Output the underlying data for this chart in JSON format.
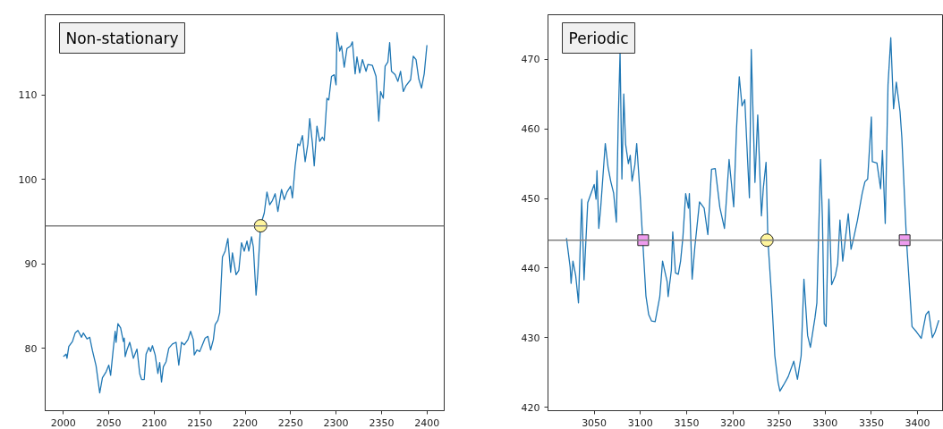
{
  "chart_data": [
    {
      "type": "line",
      "title": "Non-stationary",
      "xlim": [
        1980,
        2419
      ],
      "ylim": [
        72.6,
        119.5
      ],
      "xticks": [
        2000,
        2050,
        2100,
        2150,
        2200,
        2250,
        2300,
        2350,
        2400
      ],
      "yticks": [
        80,
        90,
        100,
        110
      ],
      "ref_lines": [
        {
          "axis": "y",
          "value": 94.5,
          "color": "#808080"
        }
      ],
      "series": [
        {
          "color": "#1f77b4",
          "x": [
            2000,
            2003,
            2004,
            2006,
            2010,
            2013,
            2016,
            2020,
            2022,
            2026,
            2029,
            2032,
            2036,
            2038,
            2040,
            2043,
            2047,
            2050,
            2052,
            2055,
            2057,
            2058,
            2060,
            2063,
            2066,
            2067,
            2068,
            2070,
            2073,
            2075,
            2077,
            2081,
            2084,
            2086,
            2089,
            2091,
            2094,
            2096,
            2098,
            2101,
            2104,
            2106,
            2108,
            2110,
            2113,
            2116,
            2120,
            2124,
            2127,
            2130,
            2133,
            2137,
            2140,
            2143,
            2144,
            2147,
            2150,
            2153,
            2156,
            2159,
            2162,
            2165,
            2167,
            2170,
            2172,
            2175,
            2178,
            2181,
            2184,
            2186,
            2190,
            2193,
            2196,
            2199,
            2202,
            2204,
            2207,
            2209,
            2212,
            2214,
            2217,
            2221,
            2224,
            2227,
            2230,
            2233,
            2236,
            2240,
            2243,
            2246,
            2250,
            2252,
            2255,
            2258,
            2260,
            2263,
            2266,
            2269,
            2271,
            2274,
            2276,
            2279,
            2282,
            2285,
            2287,
            2290,
            2292,
            2295,
            2298,
            2300,
            2301,
            2304,
            2306,
            2309,
            2312,
            2316,
            2318,
            2321,
            2323,
            2326,
            2329,
            2333,
            2335,
            2340,
            2344,
            2347,
            2349,
            2352,
            2354,
            2357,
            2359,
            2361,
            2365,
            2368,
            2371,
            2374,
            2377,
            2382,
            2385,
            2388,
            2391,
            2394,
            2397,
            2400
          ],
          "values": [
            79,
            79.3,
            78.8,
            80.2,
            80.8,
            81.8,
            82.1,
            81.3,
            81.8,
            81.1,
            81.3,
            79.7,
            77.9,
            76.3,
            74.7,
            76.5,
            77.2,
            78,
            76.8,
            80,
            82,
            80.7,
            82.9,
            82.4,
            80.8,
            81.2,
            79,
            79.8,
            80.7,
            79.8,
            78.8,
            79.9,
            77,
            76.3,
            76.3,
            79.3,
            80.1,
            79.6,
            80.3,
            79.2,
            77,
            78.3,
            76,
            77.8,
            78.4,
            80,
            80.5,
            80.7,
            78,
            80.7,
            80.4,
            81,
            82,
            81,
            79.2,
            79.8,
            79.6,
            80.4,
            81.2,
            81.4,
            79.8,
            81,
            82.8,
            83.3,
            84.2,
            90.8,
            91.5,
            93,
            89,
            91.3,
            88.7,
            89.2,
            92.5,
            91.5,
            92.7,
            91.5,
            93.2,
            92,
            86.3,
            89,
            94.6,
            96,
            98.5,
            97,
            97.5,
            98.3,
            96.2,
            98.8,
            97.6,
            98.5,
            99.2,
            97.8,
            101.6,
            104.2,
            104,
            105.2,
            102.1,
            104.2,
            107.2,
            104.3,
            101.6,
            106.3,
            104.5,
            105,
            104.6,
            109.6,
            109.4,
            112.2,
            112.4,
            111.2,
            117.4,
            115.2,
            115.8,
            113.3,
            115.5,
            115.8,
            116.3,
            112.5,
            114.5,
            112.6,
            114.2,
            112.8,
            113.6,
            113.5,
            112.2,
            106.9,
            110.4,
            109.6,
            113.4,
            113.9,
            116.2,
            112.8,
            112.4,
            111.6,
            112.8,
            110.4,
            111.1,
            111.8,
            114.6,
            114.2,
            111.9,
            110.8,
            112.5,
            115.9
          ]
        },
        {
          "type": "scatter",
          "marker": "circle",
          "color": "#fff59d",
          "x": [
            2217
          ],
          "values": [
            94.5
          ]
        }
      ]
    },
    {
      "type": "line",
      "title": "Periodic",
      "xlim": [
        3000,
        3428
      ],
      "ylim": [
        419.5,
        476.4
      ],
      "xticks": [
        3050,
        3100,
        3150,
        3200,
        3250,
        3300,
        3350,
        3400
      ],
      "yticks": [
        420,
        430,
        440,
        450,
        460,
        470
      ],
      "ref_lines": [
        {
          "axis": "y",
          "value": 444,
          "color": "#808080"
        }
      ],
      "series": [
        {
          "color": "#1f77b4",
          "x": [
            3020,
            3024,
            3025,
            3027,
            3030,
            3033,
            3034,
            3036.5,
            3039,
            3043,
            3050,
            3052,
            3053,
            3055,
            3057,
            3062,
            3065,
            3068,
            3071,
            3074,
            3076,
            3078,
            3080,
            3082,
            3084,
            3087,
            3089,
            3091,
            3094,
            3096,
            3100,
            3102.5,
            3106,
            3109,
            3112,
            3116,
            3121,
            3124,
            3129,
            3130,
            3133.5,
            3135,
            3138,
            3141,
            3143.5,
            3146,
            3149,
            3152,
            3153,
            3156,
            3159,
            3164,
            3169,
            3173,
            3177,
            3181,
            3186,
            3191,
            3196,
            3201,
            3204,
            3207,
            3210,
            3213,
            3216,
            3218,
            3220,
            3224,
            3227,
            3231,
            3233,
            3236,
            3238,
            3242,
            3245.5,
            3249,
            3251,
            3255,
            3260,
            3266,
            3270,
            3274,
            3277,
            3281,
            3284,
            3289,
            3291,
            3295,
            3297,
            3299,
            3301,
            3304,
            3307,
            3311,
            3313.5,
            3316,
            3319,
            3322,
            3325,
            3328,
            3331,
            3335,
            3340,
            3343,
            3346,
            3350,
            3351,
            3356,
            3360,
            3362,
            3365,
            3368,
            3371,
            3374,
            3377,
            3381,
            3383,
            3388,
            3394,
            3399,
            3404,
            3409,
            3412,
            3416,
            3419,
            3423
          ],
          "values": [
            444.3,
            440.1,
            437.8,
            441,
            438.9,
            435,
            439.3,
            449.9,
            438.3,
            449.4,
            452,
            449.9,
            454,
            445.7,
            448.6,
            457.9,
            454.5,
            452.4,
            450.8,
            446.6,
            461,
            471,
            452.8,
            465,
            457.8,
            455,
            456.2,
            452.5,
            454.8,
            457.9,
            449.9,
            444,
            436,
            433.3,
            432.4,
            432.3,
            435.9,
            441,
            438,
            435.9,
            439.7,
            445.2,
            439.3,
            439.1,
            441,
            444.4,
            450.7,
            448.6,
            450.7,
            438.4,
            443.1,
            449.5,
            448.6,
            444.8,
            454.2,
            454.3,
            448.7,
            445.7,
            455.6,
            448.8,
            459.9,
            467.5,
            463.3,
            464.2,
            455.6,
            450.1,
            471.4,
            452.3,
            462,
            447.5,
            451.4,
            455.2,
            444,
            435.9,
            427.4,
            423.6,
            422.3,
            423.2,
            424.4,
            426.6,
            424,
            427.4,
            438.4,
            430.3,
            428.6,
            432.9,
            435,
            455.6,
            447.2,
            432,
            431.6,
            449.9,
            437.6,
            438.9,
            440.6,
            446.9,
            441,
            444.4,
            447.8,
            442.7,
            444.4,
            446.9,
            450.7,
            452.4,
            452.8,
            461.7,
            455.3,
            455.1,
            451.4,
            456.9,
            446.4,
            466.3,
            473.1,
            462.9,
            466.7,
            462.5,
            458.7,
            444,
            431.6,
            430.8,
            429.9,
            433.3,
            433.8,
            430,
            430.8,
            432.5
          ]
        },
        {
          "type": "scatter",
          "marker": "square",
          "color": "#ee9cee",
          "x": [
            3103,
            3386
          ],
          "values": [
            444,
            444
          ]
        },
        {
          "type": "scatter",
          "marker": "circle",
          "color": "#fff59d",
          "x": [
            3237
          ],
          "values": [
            444
          ]
        }
      ]
    }
  ]
}
